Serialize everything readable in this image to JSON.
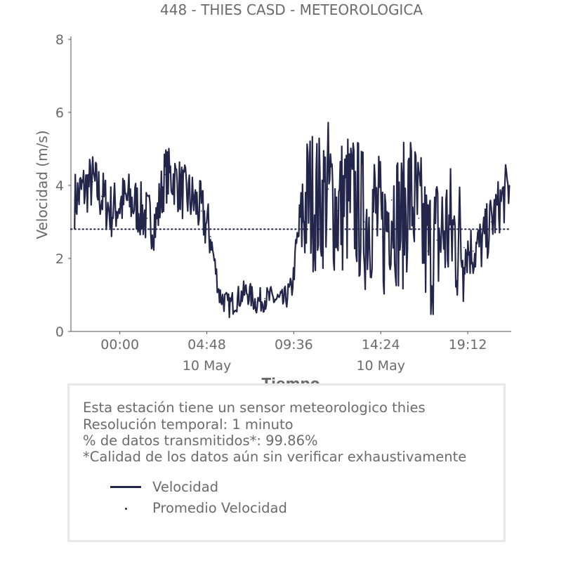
{
  "chart_data": {
    "type": "line",
    "title": "448 - THIES CASD - METEOROLOGICA",
    "xlabel": "Tiempo",
    "ylabel": "Velocidad (m/s)",
    "ylim": [
      0,
      8
    ],
    "yticks": [
      "0",
      "2",
      "4",
      "6",
      "8"
    ],
    "xticks": [
      {
        "label": "00:00",
        "sublabel": "",
        "hour": 0
      },
      {
        "label": "04:48",
        "sublabel": "10 May",
        "hour": 4.8
      },
      {
        "label": "09:36",
        "sublabel": "",
        "hour": 9.6
      },
      {
        "label": "14:24",
        "sublabel": "10 May",
        "hour": 14.4
      },
      {
        "label": "19:12",
        "sublabel": "",
        "hour": 19.2
      }
    ],
    "x_range_hours": [
      -2.7,
      21.6
    ],
    "grid": false,
    "series": [
      {
        "name": "Velocidad",
        "color": "#23254a",
        "style": "solid",
        "x_hours": [
          -2.5,
          -2.0,
          -1.5,
          -1.0,
          -0.5,
          0.0,
          0.5,
          1.0,
          1.5,
          2.0,
          2.5,
          3.0,
          3.5,
          4.0,
          4.5,
          5.0,
          5.5,
          6.0,
          6.5,
          7.0,
          7.5,
          8.0,
          8.5,
          9.0,
          9.5,
          10.0,
          10.5,
          11.0,
          11.5,
          12.0,
          12.5,
          13.0,
          13.5,
          14.0,
          14.5,
          15.0,
          15.5,
          16.0,
          16.5,
          17.0,
          17.5,
          18.0,
          18.5,
          19.0,
          19.5,
          20.0,
          20.5,
          21.0,
          21.5
        ],
        "values": [
          3.6,
          3.9,
          4.1,
          3.7,
          3.3,
          3.5,
          3.6,
          3.4,
          3.1,
          3.0,
          4.3,
          4.2,
          3.8,
          3.6,
          3.3,
          2.6,
          1.0,
          0.7,
          0.9,
          1.1,
          0.8,
          0.9,
          0.9,
          0.8,
          1.2,
          3.2,
          3.7,
          3.5,
          3.9,
          3.3,
          3.6,
          3.5,
          3.0,
          3.4,
          2.6,
          3.6,
          2.9,
          3.8,
          3.1,
          2.2,
          2.5,
          2.8,
          2.6,
          2.3,
          2.2,
          2.4,
          3.0,
          3.5,
          4.0
        ]
      },
      {
        "name": "Promedio Velocidad",
        "color": "#23254a",
        "style": "dotted",
        "constant": 2.8
      }
    ]
  },
  "info": {
    "line1": "Esta estación tiene un sensor meteorologico thies",
    "line2": "Resolución temporal: 1 minuto",
    "line3": "% de datos transmitidos*: 99.86%",
    "line4": "*Calidad de los datos aún sin verificar exhaustivamente"
  }
}
